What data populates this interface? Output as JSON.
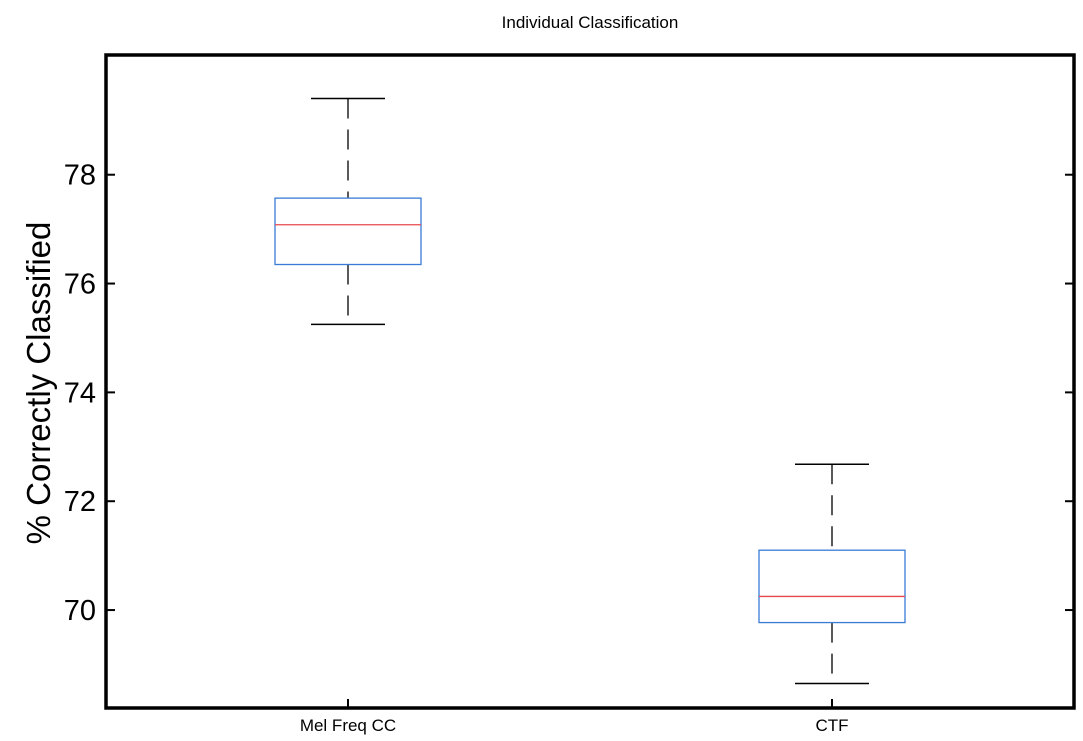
{
  "chart_data": {
    "type": "boxplot",
    "title": "Individual Classification",
    "xlabel": "",
    "ylabel": "% Correctly Classified",
    "ylim": [
      68.2,
      80.2
    ],
    "yticks": [
      70,
      72,
      74,
      76,
      78
    ],
    "categories": [
      "Mel Freq CC",
      "CTF"
    ],
    "boxes": [
      {
        "category": "Mel Freq CC",
        "whisker_low": 75.25,
        "q1": 76.35,
        "median": 77.08,
        "q3": 77.57,
        "whisker_high": 79.4
      },
      {
        "category": "CTF",
        "whisker_low": 68.65,
        "q1": 69.77,
        "median": 70.25,
        "q3": 71.1,
        "whisker_high": 72.68
      }
    ],
    "grid": false,
    "legend": "none",
    "colors": {
      "box": "#3a7bd5",
      "median": "#e8474c",
      "whisker": "#000000",
      "axes": "#000000"
    }
  }
}
